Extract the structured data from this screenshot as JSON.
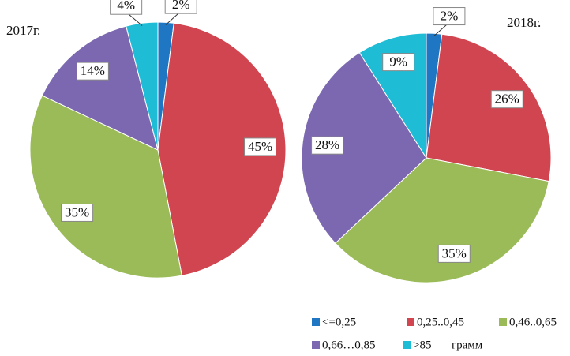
{
  "chart_data": [
    {
      "type": "pie",
      "title": "2017г.",
      "values": [
        2,
        45,
        35,
        14,
        4
      ],
      "value_labels": [
        "2%",
        "45%",
        "35%",
        "14%",
        "4%"
      ]
    },
    {
      "type": "pie",
      "title": "2018г.",
      "values": [
        2,
        26,
        35,
        28,
        9
      ],
      "value_labels": [
        "2%",
        "26%",
        "35%",
        "28%",
        "9%"
      ]
    }
  ],
  "legend": {
    "categories": [
      "<=0,25",
      "0,25..0,45",
      "0,46..0,65",
      "0,66…0,85",
      ">85"
    ],
    "colors": [
      "#1f77c4",
      "#d0454f",
      "#9bbb59",
      "#7b68b0",
      "#1fbcd6"
    ],
    "unit": "грамм"
  }
}
